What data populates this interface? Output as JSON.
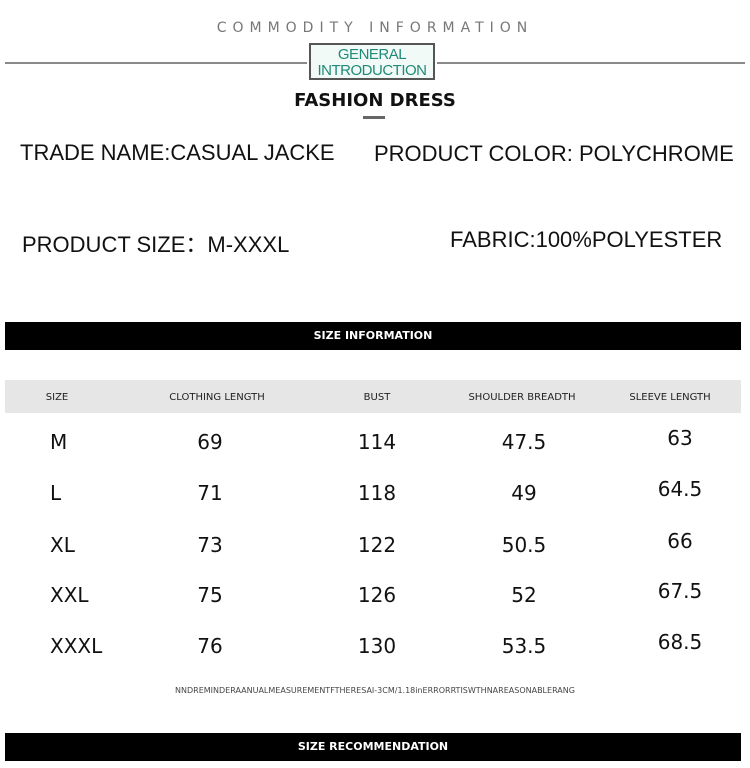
{
  "header": {
    "subtitle": "COMMODITY INFORMATION",
    "badge_line1": "GENERAL",
    "badge_line2": "INTRODUCTION",
    "title": "FASHION DRESS"
  },
  "info": {
    "trade_name_label": "TRADE NAME:",
    "trade_name": "CASUAL JACKE",
    "color_label": "PRODUCT COLOR:",
    "color": "POLYCHROME",
    "size_label": "PRODUCT SIZE：",
    "size": "M-XXXL",
    "fabric_label": "FABRIC:",
    "fabric": "100%POLYESTER"
  },
  "size_info_bar": "SIZE INFORMATION",
  "table": {
    "headers": [
      "SIZE",
      "CLOTHING LENGTH",
      "BUST",
      "SHOULDER BREADTH",
      "SLEEVE LENGTH"
    ],
    "rows": [
      [
        "M",
        "69",
        "114",
        "47.5",
        "63"
      ],
      [
        "L",
        "71",
        "118",
        "49",
        "64.5"
      ],
      [
        "XL",
        "73",
        "122",
        "50.5",
        "66"
      ],
      [
        "XXL",
        "75",
        "126",
        "52",
        "67.5"
      ],
      [
        "XXXL",
        "76",
        "130",
        "53.5",
        "68.5"
      ]
    ]
  },
  "note": "NNDREMINDERAANUALMEASUREMENTFTHERESAI-3CM/1.18inERRORRTISWTHNAREASONABLERANG",
  "recommend_bar": "SIZE RECOMMENDATION",
  "colors": {
    "badge_text": "#1f8a77",
    "bar": "#000000",
    "header_band": "#e6e6e6"
  }
}
